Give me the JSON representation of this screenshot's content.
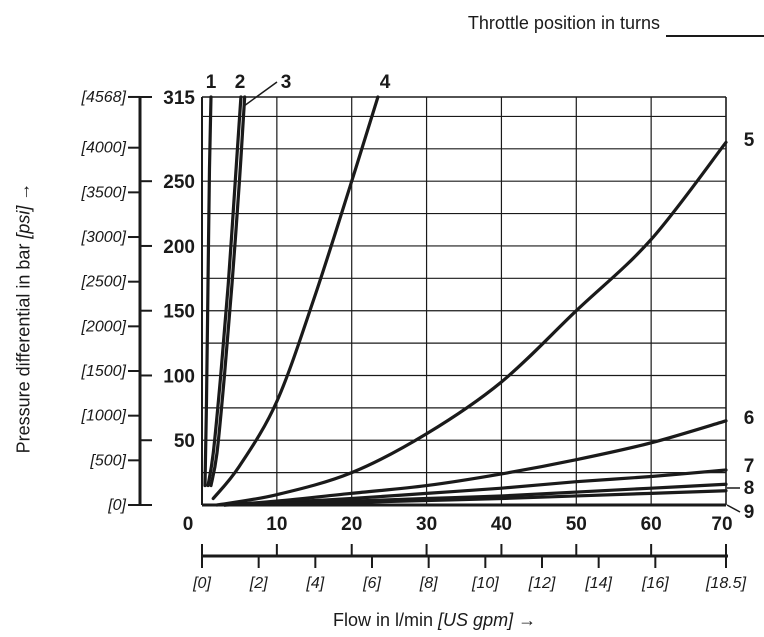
{
  "legend": {
    "title": "Throttle position in turns"
  },
  "chart_data": {
    "type": "line",
    "ylabel": {
      "main": "Pressure differential in bar",
      "unit": "[psi]",
      "arrow": "→"
    },
    "xlabel": {
      "main": "Flow in l/min",
      "unit": "[US gpm]",
      "arrow": "→"
    },
    "xlim": [
      0,
      70
    ],
    "ylim": [
      0,
      315
    ],
    "x_ticks": [
      "0",
      "10",
      "20",
      "30",
      "40",
      "50",
      "60",
      "70"
    ],
    "x_ticks_gpm": [
      "[0]",
      "[2]",
      "[4]",
      "[6]",
      "[8]",
      "[10]",
      "[12]",
      "[14]",
      "[16]",
      "[18.5]"
    ],
    "y_ticks": [
      "0",
      "50",
      "100",
      "150",
      "200",
      "250",
      "315"
    ],
    "y_ticks_psi": [
      "[0]",
      "[500]",
      "[1000]",
      "[1500]",
      "[2000]",
      "[2500]",
      "[3000]",
      "[3500]",
      "[4000]",
      "[4568]"
    ],
    "grid": true,
    "series": [
      {
        "name": "1",
        "x": [
          0.4,
          0.6,
          0.8,
          1.0,
          1.2
        ],
        "y": [
          15,
          80,
          170,
          260,
          315
        ]
      },
      {
        "name": "2",
        "x": [
          0.8,
          1.5,
          2.5,
          3.5,
          4.5,
          5.2
        ],
        "y": [
          15,
          40,
          100,
          170,
          255,
          315
        ]
      },
      {
        "name": "3",
        "x": [
          1.2,
          2,
          3,
          4,
          5,
          5.7
        ],
        "y": [
          15,
          40,
          100,
          170,
          250,
          315
        ]
      },
      {
        "name": "4",
        "x": [
          1.5,
          5,
          10,
          15,
          20,
          23.5
        ],
        "y": [
          5,
          30,
          80,
          160,
          250,
          315
        ]
      },
      {
        "name": "5",
        "x": [
          2,
          10,
          20,
          30,
          40,
          50,
          60,
          70
        ],
        "y": [
          0,
          8,
          25,
          55,
          95,
          150,
          205,
          280
        ]
      },
      {
        "name": "6",
        "x": [
          3,
          10,
          20,
          30,
          40,
          50,
          60,
          70
        ],
        "y": [
          0,
          3,
          9,
          15,
          24,
          35,
          48,
          65
        ]
      },
      {
        "name": "7",
        "x": [
          3,
          10,
          20,
          30,
          40,
          50,
          60,
          70
        ],
        "y": [
          0,
          2,
          5,
          9,
          13,
          18,
          22,
          27
        ]
      },
      {
        "name": "8",
        "x": [
          3,
          10,
          20,
          30,
          40,
          50,
          60,
          70
        ],
        "y": [
          0,
          1,
          3,
          5,
          7,
          10,
          13,
          16
        ]
      },
      {
        "name": "9",
        "x": [
          3,
          10,
          20,
          30,
          40,
          50,
          60,
          70
        ],
        "y": [
          0,
          1,
          2,
          3.5,
          5,
          7,
          9,
          11
        ]
      }
    ]
  }
}
